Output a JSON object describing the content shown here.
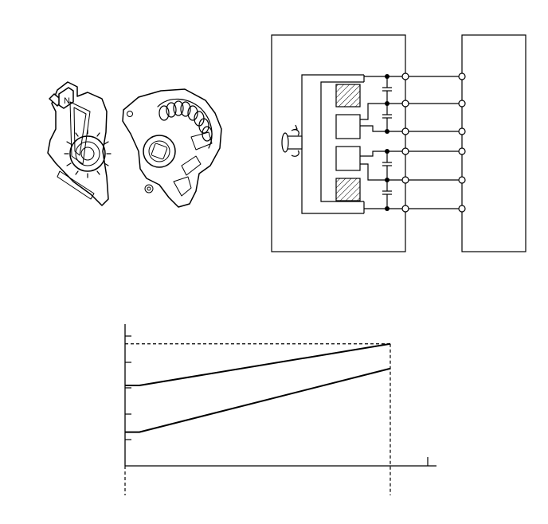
{
  "figure": {
    "parts": {
      "label": "",
      "connector_marking": "N"
    },
    "circuit": {
      "left_box_label": "",
      "right_box_label": "",
      "terminal_count": 6
    },
    "chart_data": {
      "type": "line",
      "title": "",
      "xlabel": "",
      "ylabel": "",
      "x_tick_count": 2,
      "y_tick_count": 5,
      "grid": false,
      "series": [
        {
          "x": [
            0,
            1
          ],
          "y": [
            0.62,
            0.94
          ]
        },
        {
          "x": [
            0,
            1
          ],
          "y": [
            0.26,
            0.75
          ]
        }
      ],
      "reference_lines": {
        "horizontal_dashed_at_y": 0.94,
        "vertical_dashed_at_x": [
          0,
          1
        ]
      }
    },
    "colors": {
      "ink": "#000000",
      "background": "#ffffff"
    }
  }
}
